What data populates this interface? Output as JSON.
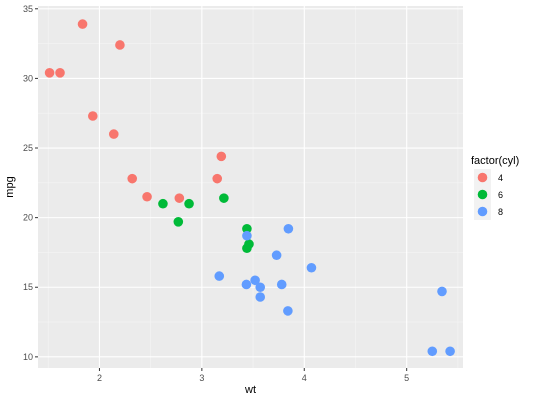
{
  "chart_data": {
    "type": "scatter",
    "xlabel": "wt",
    "ylabel": "mpg",
    "xlim": [
      1.4,
      5.55
    ],
    "ylim": [
      9.2,
      35.2
    ],
    "x_ticks": [
      2,
      3,
      4,
      5
    ],
    "y_ticks": [
      10,
      15,
      20,
      25,
      30,
      35
    ],
    "grid": true,
    "legend": {
      "title": "factor(cyl)",
      "position": "right",
      "entries": [
        {
          "label": "4",
          "color": "#F8766D"
        },
        {
          "label": "6",
          "color": "#00BA38"
        },
        {
          "label": "8",
          "color": "#619CFF"
        }
      ]
    },
    "series": [
      {
        "name": "4",
        "color": "#F8766D",
        "points": [
          [
            2.32,
            22.8
          ],
          [
            3.19,
            24.4
          ],
          [
            3.15,
            22.8
          ],
          [
            2.2,
            32.4
          ],
          [
            1.615,
            30.4
          ],
          [
            1.835,
            33.9
          ],
          [
            2.465,
            21.5
          ],
          [
            1.935,
            27.3
          ],
          [
            2.14,
            26.0
          ],
          [
            1.513,
            30.4
          ],
          [
            2.78,
            21.4
          ]
        ]
      },
      {
        "name": "6",
        "color": "#00BA38",
        "points": [
          [
            2.62,
            21.0
          ],
          [
            2.875,
            21.0
          ],
          [
            3.215,
            21.4
          ],
          [
            3.44,
            19.2
          ],
          [
            3.44,
            17.8
          ],
          [
            3.46,
            18.1
          ],
          [
            2.77,
            19.7
          ]
        ]
      },
      {
        "name": "8",
        "color": "#619CFF",
        "points": [
          [
            3.44,
            18.7
          ],
          [
            3.57,
            14.3
          ],
          [
            4.07,
            16.4
          ],
          [
            3.73,
            17.3
          ],
          [
            3.78,
            15.2
          ],
          [
            5.25,
            10.4
          ],
          [
            5.424,
            10.4
          ],
          [
            5.345,
            14.7
          ],
          [
            3.52,
            15.5
          ],
          [
            3.435,
            15.2
          ],
          [
            3.84,
            13.3
          ],
          [
            3.845,
            19.2
          ],
          [
            3.17,
            15.8
          ],
          [
            3.57,
            15.0
          ]
        ]
      }
    ]
  }
}
